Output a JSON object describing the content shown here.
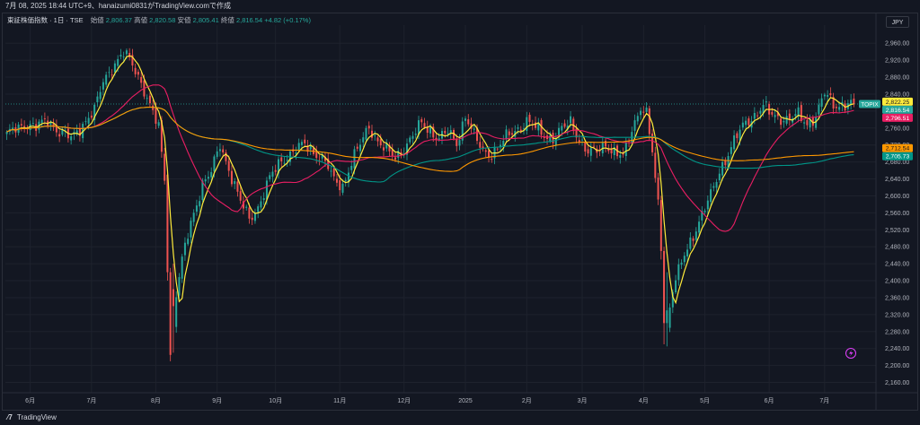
{
  "header": {
    "caption": "7月 08, 2025 18:44 UTC+9、hanaizumi0831がTradingView.comで作成"
  },
  "legend": {
    "symbol": "東証株価指数 · 1日 · TSE",
    "open_label": "始値",
    "open": "2,806.37",
    "high_label": "高値",
    "high": "2,820.58",
    "low_label": "安値",
    "low": "2,805.41",
    "close_label": "終値",
    "close": "2,816.54",
    "change": "+4.82 (+0.17%)"
  },
  "currency_button": "JPY",
  "footer": {
    "brand": "TradingView",
    "logo": "tv-logo"
  },
  "colors": {
    "background": "#131722",
    "up": "#26a69a",
    "down": "#ef5350",
    "ma_fast": "#ffeb3b",
    "ma_mid": "#e91e63",
    "ma_slow1": "#009688",
    "ma_slow2": "#ff9800",
    "grid": "#1e222d"
  },
  "chart_data": {
    "type": "line",
    "title": "",
    "ylim": [
      2140,
      2990
    ],
    "y_ticks": [
      2160,
      2200,
      2240,
      2280,
      2320,
      2360,
      2400,
      2440,
      2480,
      2520,
      2560,
      2600,
      2640,
      2680,
      2720,
      2760,
      2800,
      2840,
      2880,
      2920,
      2960
    ],
    "y_tick_labels": [
      "2,160.00",
      "2,200.00",
      "2,240.00",
      "2,280.00",
      "2,320.00",
      "2,360.00",
      "2,400.00",
      "2,440.00",
      "2,480.00",
      "2,520.00",
      "2,560.00",
      "2,600.00",
      "2,640.00",
      "2,680.00",
      "2,720.00",
      "2,760.00",
      "2,800.00",
      "2,840.00",
      "2,880.00",
      "2,920.00",
      "2,960.00"
    ],
    "x_labels": [
      "6月",
      "7月",
      "8月",
      "9月",
      "10月",
      "11月",
      "12月",
      "2025",
      "2月",
      "3月",
      "4月",
      "5月",
      "6月",
      "7月"
    ],
    "x_label_index": [
      8,
      29,
      51,
      72,
      92,
      114,
      136,
      157,
      178,
      197,
      218,
      239,
      261,
      280
    ],
    "n_bars": 291,
    "close_anchors": [
      [
        0,
        2740
      ],
      [
        3,
        2760
      ],
      [
        6,
        2770
      ],
      [
        10,
        2760
      ],
      [
        14,
        2780
      ],
      [
        18,
        2750
      ],
      [
        22,
        2735
      ],
      [
        26,
        2770
      ],
      [
        30,
        2800
      ],
      [
        33,
        2870
      ],
      [
        36,
        2905
      ],
      [
        40,
        2935
      ],
      [
        43,
        2910
      ],
      [
        46,
        2870
      ],
      [
        49,
        2810
      ],
      [
        52,
        2760
      ],
      [
        54,
        2640
      ],
      [
        55,
        2440
      ],
      [
        56,
        2225
      ],
      [
        58,
        2370
      ],
      [
        61,
        2480
      ],
      [
        64,
        2560
      ],
      [
        67,
        2630
      ],
      [
        70,
        2655
      ],
      [
        73,
        2720
      ],
      [
        76,
        2665
      ],
      [
        80,
        2585
      ],
      [
        83,
        2545
      ],
      [
        86,
        2575
      ],
      [
        90,
        2640
      ],
      [
        94,
        2685
      ],
      [
        98,
        2705
      ],
      [
        102,
        2720
      ],
      [
        106,
        2700
      ],
      [
        109,
        2680
      ],
      [
        112,
        2635
      ],
      [
        115,
        2625
      ],
      [
        118,
        2680
      ],
      [
        121,
        2720
      ],
      [
        124,
        2765
      ],
      [
        127,
        2730
      ],
      [
        130,
        2705
      ],
      [
        133,
        2690
      ],
      [
        136,
        2715
      ],
      [
        139,
        2740
      ],
      [
        142,
        2770
      ],
      [
        145,
        2755
      ],
      [
        148,
        2735
      ],
      [
        151,
        2750
      ],
      [
        154,
        2725
      ],
      [
        157,
        2790
      ],
      [
        160,
        2740
      ],
      [
        163,
        2705
      ],
      [
        166,
        2700
      ],
      [
        169,
        2720
      ],
      [
        172,
        2745
      ],
      [
        175,
        2760
      ],
      [
        178,
        2775
      ],
      [
        181,
        2760
      ],
      [
        184,
        2745
      ],
      [
        187,
        2735
      ],
      [
        190,
        2755
      ],
      [
        193,
        2775
      ],
      [
        196,
        2735
      ],
      [
        199,
        2700
      ],
      [
        202,
        2705
      ],
      [
        205,
        2725
      ],
      [
        208,
        2700
      ],
      [
        211,
        2690
      ],
      [
        214,
        2760
      ],
      [
        217,
        2810
      ],
      [
        219,
        2790
      ],
      [
        221,
        2700
      ],
      [
        223,
        2580
      ],
      [
        225,
        2450
      ],
      [
        226,
        2290
      ],
      [
        228,
        2380
      ],
      [
        230,
        2420
      ],
      [
        232,
        2460
      ],
      [
        235,
        2510
      ],
      [
        238,
        2555
      ],
      [
        241,
        2600
      ],
      [
        244,
        2660
      ],
      [
        247,
        2700
      ],
      [
        250,
        2740
      ],
      [
        253,
        2775
      ],
      [
        256,
        2790
      ],
      [
        259,
        2810
      ],
      [
        262,
        2790
      ],
      [
        265,
        2785
      ],
      [
        268,
        2780
      ],
      [
        271,
        2790
      ],
      [
        274,
        2770
      ],
      [
        277,
        2790
      ],
      [
        280,
        2840
      ],
      [
        283,
        2815
      ],
      [
        287,
        2816.54
      ]
    ],
    "crash_bars": [
      {
        "i": 55,
        "o": 2650,
        "c": 2420,
        "h": 2660,
        "l": 2400
      },
      {
        "i": 56,
        "o": 2420,
        "c": 2225,
        "h": 2430,
        "l": 2210
      },
      {
        "i": 57,
        "o": 2380,
        "c": 2340,
        "h": 2440,
        "l": 2230
      },
      {
        "i": 224,
        "o": 2590,
        "c": 2470,
        "h": 2600,
        "l": 2450
      },
      {
        "i": 225,
        "o": 2470,
        "c": 2300,
        "h": 2480,
        "l": 2250
      },
      {
        "i": 226,
        "o": 2300,
        "c": 2330,
        "h": 2420,
        "l": 2245
      }
    ],
    "series": [
      {
        "name": "",
        "key": "ma_fast",
        "color": "#ffeb3b",
        "period": 5
      },
      {
        "name": "",
        "key": "ma_mid",
        "color": "#e91e63",
        "period": 25
      },
      {
        "name": "",
        "key": "ma_slow1",
        "color": "#009688",
        "period": 75
      },
      {
        "name": "",
        "key": "ma_slow2",
        "color": "#ff9800",
        "period": 100
      }
    ],
    "price_labels": [
      {
        "text": "2,822.25",
        "value": 2822.25,
        "bg": "#ffeb3b",
        "fg": "#131722"
      },
      {
        "text": "2,816.54",
        "value": 2816.54,
        "bg": "#26a69a",
        "fg": "#ffffff"
      },
      {
        "text": "2,796.51",
        "value": 2796.51,
        "bg": "#e91e63",
        "fg": "#ffffff"
      },
      {
        "text": "2,712.54",
        "value": 2712.54,
        "bg": "#ff9800",
        "fg": "#131722"
      },
      {
        "text": "2,705.73",
        "value": 2705.73,
        "bg": "#009688",
        "fg": "#ffffff"
      }
    ],
    "symbol_tag": "TOPIX",
    "last_price": 2816.54
  }
}
